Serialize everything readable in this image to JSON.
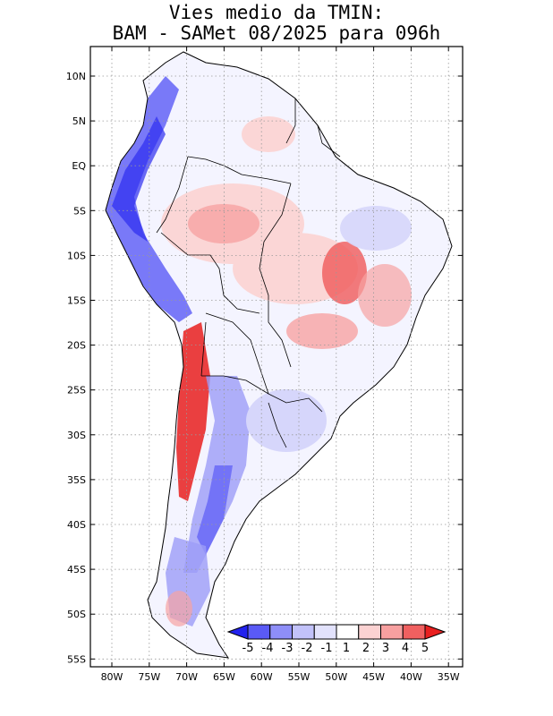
{
  "header": {
    "title_line1": "Vies medio da TMIN:",
    "title_line2": "BAM - SAMet 08/2025  para 096h"
  },
  "map": {
    "lon_labels": [
      "80W",
      "75W",
      "70W",
      "65W",
      "60W",
      "55W",
      "50W",
      "45W",
      "40W",
      "35W"
    ],
    "lat_labels": [
      "10N",
      "5N",
      "EQ",
      "5S",
      "10S",
      "15S",
      "20S",
      "25S",
      "30S",
      "35S",
      "40S",
      "45S",
      "50S",
      "55S"
    ],
    "colors": {
      "strong_blue": "#2c2cf0",
      "blue": "#5a5af6",
      "light_blue": "#9c9cf8",
      "pale_blue": "#d6d6fb",
      "pale_red": "#fbd6d6",
      "light_red": "#f7a3a3",
      "red": "#f05a5a",
      "strong_red": "#e81e1e"
    }
  },
  "colorbar": {
    "labels": [
      "-5",
      "-4",
      "-3",
      "-2",
      "-1",
      "1",
      "2",
      "3",
      "4",
      "5"
    ],
    "colors": [
      "#2222ee",
      "#5a5af6",
      "#8e8ef8",
      "#c2c2fa",
      "#e2e2fc",
      "#ffffff",
      "#fbd2d2",
      "#f7a0a0",
      "#f06060",
      "#e82020"
    ]
  }
}
